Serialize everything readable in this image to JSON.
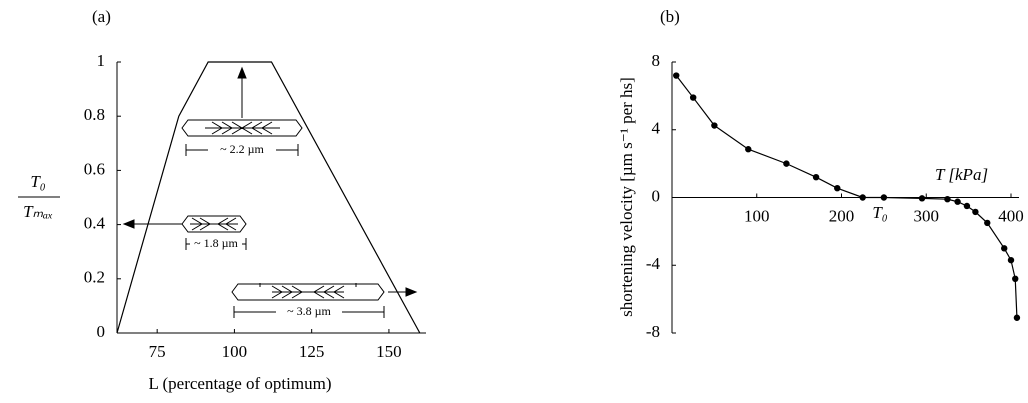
{
  "chart_data": [
    {
      "type": "line",
      "panel_label": "(a)",
      "x_label": "L (percentage of optimum)",
      "y_label_numerator": "T₀",
      "y_label_denominator": "Tₘₐₓ",
      "x": [
        62,
        82,
        91.5,
        112,
        160
      ],
      "values": [
        0,
        0.8,
        1,
        1,
        0
      ],
      "color": "#000000",
      "markers": false,
      "xlim": [
        62,
        162
      ],
      "ylim": [
        0,
        1
      ],
      "xticks": [
        75,
        100,
        125,
        150
      ],
      "yticks": [
        0,
        0.2,
        0.4,
        0.6,
        0.8,
        1
      ],
      "grid": false,
      "annotations": [
        "~ 2.2 µm",
        "~ 1.8 µm",
        "~ 3.8 µm"
      ]
    },
    {
      "type": "line",
      "panel_label": "(b)",
      "x_label": "T [kPa]",
      "y_label": "shortening velocity [µm s⁻¹ per hs]",
      "zero_label": "T₀",
      "x": [
        5,
        25,
        50,
        90,
        135,
        170,
        195,
        225,
        250,
        295,
        325,
        337,
        348,
        358,
        372,
        392,
        400,
        405,
        407
      ],
      "values": [
        7.2,
        5.9,
        4.25,
        2.85,
        2.0,
        1.2,
        0.55,
        0,
        0,
        -0.05,
        -0.1,
        -0.25,
        -0.5,
        -0.85,
        -1.5,
        -3.0,
        -3.7,
        -4.8,
        -7.1
      ],
      "color": "#000000",
      "markers": true,
      "xlim": [
        0,
        400
      ],
      "ylim": [
        -8,
        8
      ],
      "xticks": [
        100,
        200,
        300,
        400
      ],
      "yticks": [
        -8,
        -4,
        0,
        4,
        8
      ],
      "grid": false
    }
  ]
}
